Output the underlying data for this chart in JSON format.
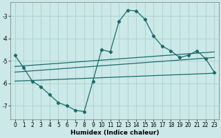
{
  "xlabel": "Humidex (Indice chaleur)",
  "bg_color": "#cce8e8",
  "line_color": "#1a6b6b",
  "xlim": [
    -0.5,
    23.5
  ],
  "ylim": [
    -7.6,
    -2.4
  ],
  "yticks": [
    -7,
    -6,
    -5,
    -4,
    -3
  ],
  "xticks": [
    0,
    1,
    2,
    3,
    4,
    5,
    6,
    7,
    8,
    9,
    10,
    11,
    12,
    13,
    14,
    15,
    16,
    17,
    18,
    19,
    20,
    21,
    22,
    23
  ],
  "grid_color": "#aad4d4",
  "main_x": [
    0,
    1,
    2,
    3,
    4,
    5,
    6,
    7,
    8,
    9,
    10,
    11,
    12,
    13,
    14,
    15,
    16,
    17,
    18,
    19,
    20,
    21,
    22,
    23
  ],
  "main_y": [
    -4.75,
    -5.3,
    -5.9,
    -6.15,
    -6.5,
    -6.85,
    -7.0,
    -7.2,
    -7.25,
    -5.9,
    -4.5,
    -4.6,
    -3.25,
    -2.75,
    -2.78,
    -3.15,
    -3.9,
    -4.35,
    -4.55,
    -4.85,
    -4.75,
    -4.55,
    -4.9,
    -5.5
  ],
  "line1_x": [
    0,
    23
  ],
  "line1_y": [
    -5.25,
    -4.6
  ],
  "line2_x": [
    0,
    23
  ],
  "line2_y": [
    -5.5,
    -4.85
  ],
  "line3_x": [
    0,
    23
  ],
  "line3_y": [
    -5.9,
    -5.55
  ]
}
